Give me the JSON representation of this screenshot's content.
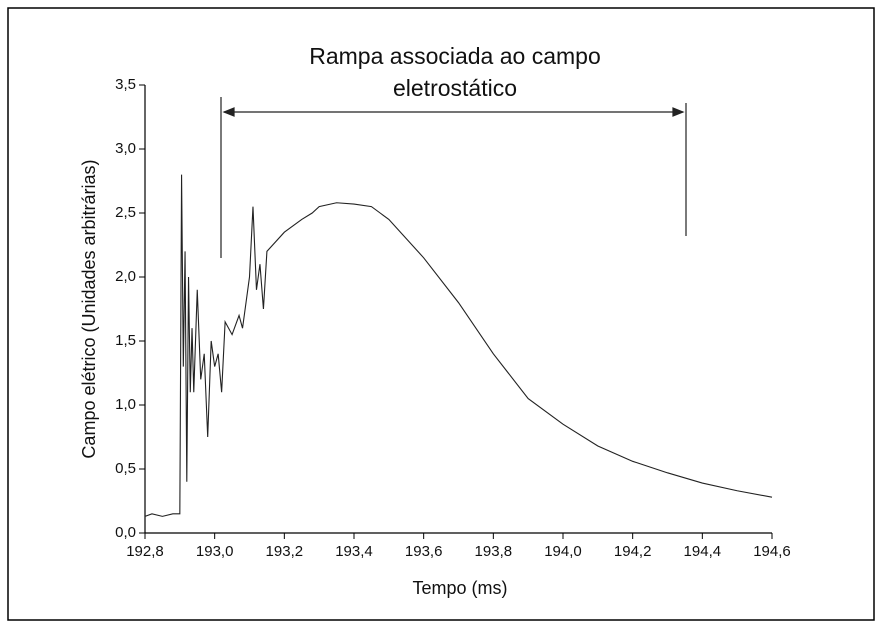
{
  "chart_data": {
    "type": "line",
    "annotation_lines": [
      "Rampa associada ao campo",
      "eletrostático"
    ],
    "x_label": "Tempo (ms)",
    "y_label": "Campo elétrico (Unidades arbitrárias)",
    "xlim": [
      192.8,
      194.6
    ],
    "ylim": [
      0,
      3.5
    ],
    "xticks": [
      {
        "value": 192.8,
        "label": "192,8"
      },
      {
        "value": 193.0,
        "label": "193,0"
      },
      {
        "value": 193.2,
        "label": "193,2"
      },
      {
        "value": 193.4,
        "label": "193,4"
      },
      {
        "value": 193.6,
        "label": "193,6"
      },
      {
        "value": 193.8,
        "label": "193,8"
      },
      {
        "value": 194.0,
        "label": "194,0"
      },
      {
        "value": 194.2,
        "label": "194,2"
      },
      {
        "value": 194.4,
        "label": "194,4"
      },
      {
        "value": 194.6,
        "label": "194,6"
      }
    ],
    "yticks": [
      {
        "value": 0,
        "label": "0,0"
      },
      {
        "value": 0.5,
        "label": "0,5"
      },
      {
        "value": 1.0,
        "label": "1,0"
      },
      {
        "value": 1.5,
        "label": "1,5"
      },
      {
        "value": 2.0,
        "label": "2,0"
      },
      {
        "value": 2.5,
        "label": "2,5"
      },
      {
        "value": 3.0,
        "label": "3,0"
      },
      {
        "value": 3.5,
        "label": "3,5"
      }
    ],
    "series": [
      {
        "color": "#222222",
        "x": [
          192.8,
          192.82,
          192.85,
          192.88,
          192.9,
          192.905,
          192.91,
          192.915,
          192.92,
          192.925,
          192.93,
          192.935,
          192.94,
          192.95,
          192.96,
          192.97,
          192.98,
          192.99,
          193.0,
          193.01,
          193.02,
          193.03,
          193.05,
          193.07,
          193.08,
          193.1,
          193.11,
          193.12,
          193.13,
          193.14,
          193.15,
          193.2,
          193.25,
          193.28,
          193.3,
          193.35,
          193.4,
          193.45,
          193.5,
          193.6,
          193.7,
          193.8,
          193.9,
          194.0,
          194.1,
          194.2,
          194.3,
          194.4,
          194.5,
          194.6
        ],
        "values": [
          0.13,
          0.15,
          0.13,
          0.15,
          0.15,
          2.8,
          1.3,
          2.2,
          0.4,
          2.0,
          1.1,
          1.6,
          1.1,
          1.9,
          1.2,
          1.4,
          0.75,
          1.5,
          1.3,
          1.4,
          1.1,
          1.65,
          1.55,
          1.7,
          1.6,
          2.0,
          2.55,
          1.9,
          2.1,
          1.75,
          2.2,
          2.35,
          2.45,
          2.5,
          2.55,
          2.58,
          2.57,
          2.55,
          2.45,
          2.15,
          1.8,
          1.4,
          1.05,
          0.85,
          0.68,
          0.56,
          0.47,
          0.39,
          0.33,
          0.28
        ]
      }
    ]
  }
}
